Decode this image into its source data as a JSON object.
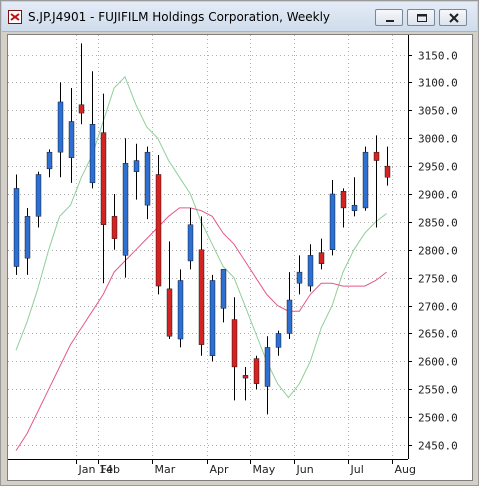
{
  "window": {
    "title": "S.JP.J4901 - FUJIFILM Holdings Corporation, Weekly",
    "buttons": [
      "minimize",
      "restore",
      "close"
    ]
  },
  "colors": {
    "up_candle": "#2e6fd2",
    "down_candle": "#d42323",
    "short_ma": "#8fcf9a",
    "long_ma": "#e6578b",
    "grid": "#b0b0b0",
    "axis_text": "#222222",
    "background": "#ffffff"
  },
  "chart_data": {
    "type": "candlestick",
    "ylim": [
      2425,
      3185
    ],
    "y_ticks": [
      "3150.0",
      "3100.0",
      "3050.0",
      "3000.0",
      "2950.0",
      "2900.0",
      "2850.0",
      "2800.0",
      "2750.0",
      "2700.0",
      "2650.0",
      "2600.0",
      "2550.0",
      "2500.0",
      "2450.0"
    ],
    "x_labels": [
      {
        "label": "Jan 14",
        "at": 6
      },
      {
        "label": "Feb",
        "at": 8
      },
      {
        "label": "Mar",
        "at": 13
      },
      {
        "label": "Apr",
        "at": 18
      },
      {
        "label": "May",
        "at": 22
      },
      {
        "label": "Jun",
        "at": 26
      },
      {
        "label": "Jul",
        "at": 31
      },
      {
        "label": "Aug",
        "at": 35
      }
    ],
    "grid": true,
    "candles": [
      {
        "o": 2770,
        "h": 2935,
        "l": 2755,
        "c": 2910
      },
      {
        "o": 2785,
        "h": 2875,
        "l": 2755,
        "c": 2860
      },
      {
        "o": 2860,
        "h": 2940,
        "l": 2840,
        "c": 2935
      },
      {
        "o": 2945,
        "h": 2980,
        "l": 2930,
        "c": 2975
      },
      {
        "o": 2975,
        "h": 3100,
        "l": 2930,
        "c": 3065
      },
      {
        "o": 2965,
        "h": 3090,
        "l": 2920,
        "c": 3030
      },
      {
        "o": 3060,
        "h": 3170,
        "l": 3025,
        "c": 3045
      },
      {
        "o": 2920,
        "h": 3120,
        "l": 2910,
        "c": 3025
      },
      {
        "o": 3010,
        "h": 3080,
        "l": 2740,
        "c": 2845
      },
      {
        "o": 2860,
        "h": 2900,
        "l": 2800,
        "c": 2820
      },
      {
        "o": 2790,
        "h": 3000,
        "l": 2750,
        "c": 2955
      },
      {
        "o": 2940,
        "h": 2990,
        "l": 2890,
        "c": 2960
      },
      {
        "o": 2880,
        "h": 2985,
        "l": 2855,
        "c": 2975
      },
      {
        "o": 2935,
        "h": 2970,
        "l": 2720,
        "c": 2735
      },
      {
        "o": 2730,
        "h": 2815,
        "l": 2640,
        "c": 2645
      },
      {
        "o": 2640,
        "h": 2765,
        "l": 2625,
        "c": 2745
      },
      {
        "o": 2780,
        "h": 2875,
        "l": 2765,
        "c": 2845
      },
      {
        "o": 2800,
        "h": 2860,
        "l": 2610,
        "c": 2630
      },
      {
        "o": 2610,
        "h": 2755,
        "l": 2600,
        "c": 2745
      },
      {
        "o": 2695,
        "h": 2765,
        "l": 2670,
        "c": 2765
      },
      {
        "o": 2675,
        "h": 2715,
        "l": 2530,
        "c": 2590
      },
      {
        "o": 2575,
        "h": 2590,
        "l": 2530,
        "c": 2570
      },
      {
        "o": 2605,
        "h": 2610,
        "l": 2550,
        "c": 2560
      },
      {
        "o": 2555,
        "h": 2645,
        "l": 2505,
        "c": 2625
      },
      {
        "o": 2625,
        "h": 2655,
        "l": 2610,
        "c": 2650
      },
      {
        "o": 2650,
        "h": 2760,
        "l": 2640,
        "c": 2710
      },
      {
        "o": 2740,
        "h": 2790,
        "l": 2720,
        "c": 2760
      },
      {
        "o": 2735,
        "h": 2810,
        "l": 2725,
        "c": 2790
      },
      {
        "o": 2795,
        "h": 2820,
        "l": 2765,
        "c": 2775
      },
      {
        "o": 2800,
        "h": 2925,
        "l": 2790,
        "c": 2900
      },
      {
        "o": 2905,
        "h": 2910,
        "l": 2840,
        "c": 2875
      },
      {
        "o": 2870,
        "h": 2930,
        "l": 2860,
        "c": 2880
      },
      {
        "o": 2875,
        "h": 2985,
        "l": 2870,
        "c": 2975
      },
      {
        "o": 2975,
        "h": 3005,
        "l": 2840,
        "c": 2960
      },
      {
        "o": 2950,
        "h": 2985,
        "l": 2915,
        "c": 2930
      }
    ],
    "series": [
      {
        "values": [
          2620,
          2670,
          2730,
          2800,
          2860,
          2880,
          2930,
          2970,
          3030,
          3090,
          3110,
          3060,
          3020,
          3000,
          2960,
          2930,
          2900,
          2850,
          2810,
          2770,
          2750,
          2700,
          2650,
          2600,
          2560,
          2535,
          2560,
          2600,
          2660,
          2700,
          2760,
          2800,
          2830,
          2850,
          2865
        ]
      },
      {
        "values": [
          2440,
          2470,
          2510,
          2550,
          2590,
          2630,
          2660,
          2690,
          2720,
          2760,
          2780,
          2800,
          2820,
          2840,
          2860,
          2875,
          2875,
          2870,
          2860,
          2830,
          2810,
          2780,
          2750,
          2720,
          2700,
          2690,
          2690,
          2720,
          2740,
          2740,
          2735,
          2735,
          2735,
          2745,
          2760
        ]
      }
    ]
  }
}
